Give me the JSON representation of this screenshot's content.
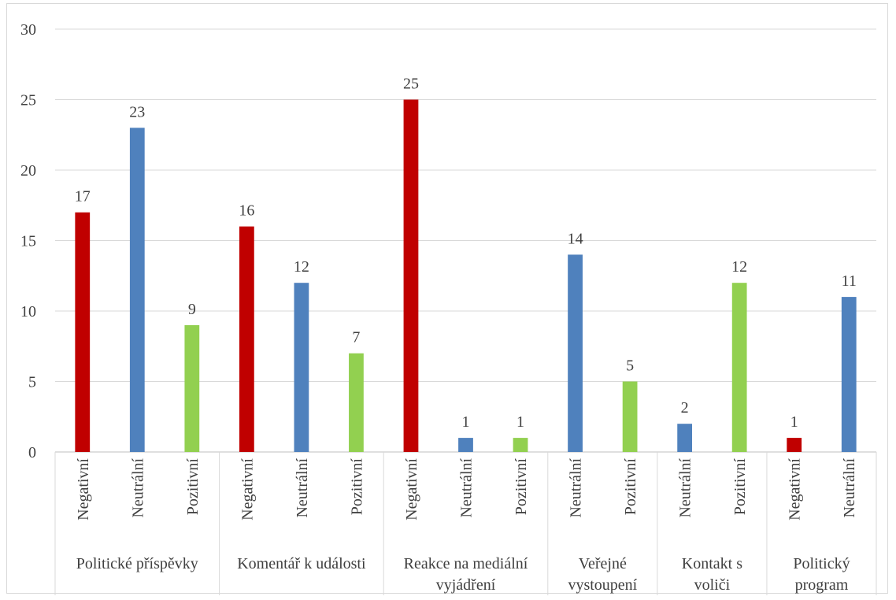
{
  "chart_data": {
    "type": "bar",
    "title": "",
    "xlabel": "",
    "ylabel": "",
    "ylim": [
      0,
      30
    ],
    "yticks": [
      0,
      5,
      10,
      15,
      20,
      25,
      30
    ],
    "grid": true,
    "legend": "none",
    "colors": {
      "Negativní": "#c00000",
      "Neutrální": "#4f81bd",
      "Pozitivní": "#92d050"
    },
    "groups": [
      {
        "label_lines": [
          "Politické příspěvky"
        ],
        "bars": [
          {
            "category": "Negativní",
            "value": 17
          },
          {
            "category": "Neutrální",
            "value": 23
          },
          {
            "category": "Pozitivní",
            "value": 9
          }
        ]
      },
      {
        "label_lines": [
          "Komentář k události"
        ],
        "bars": [
          {
            "category": "Negativní",
            "value": 16
          },
          {
            "category": "Neutrální",
            "value": 12
          },
          {
            "category": "Pozitivní",
            "value": 7
          }
        ]
      },
      {
        "label_lines": [
          "Reakce na mediální",
          "vyjádření"
        ],
        "bars": [
          {
            "category": "Negativní",
            "value": 25
          },
          {
            "category": "Neutrální",
            "value": 1
          },
          {
            "category": "Pozitivní",
            "value": 1
          }
        ]
      },
      {
        "label_lines": [
          "Veřejné",
          "vystoupení"
        ],
        "bars": [
          {
            "category": "Neutrální",
            "value": 14
          },
          {
            "category": "Pozitivní",
            "value": 5
          }
        ]
      },
      {
        "label_lines": [
          "Kontakt s",
          "voliči"
        ],
        "bars": [
          {
            "category": "Neutrální",
            "value": 2
          },
          {
            "category": "Pozitivní",
            "value": 12
          }
        ]
      },
      {
        "label_lines": [
          "Politický",
          "program"
        ],
        "bars": [
          {
            "category": "Negativní",
            "value": 1
          },
          {
            "category": "Neutrální",
            "value": 11
          }
        ]
      }
    ]
  }
}
